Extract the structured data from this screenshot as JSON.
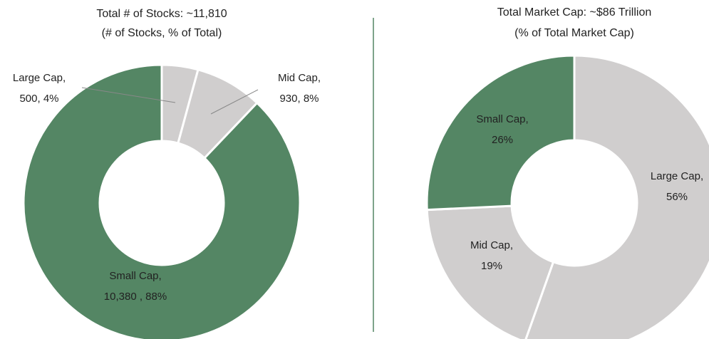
{
  "chart_data": [
    {
      "type": "donut",
      "title": "Total # of Stocks: ~11,810",
      "subtitle": "(# of Stocks, % of Total)",
      "categories": [
        "Large Cap,",
        "Mid Cap,",
        "Small Cap,"
      ],
      "values": [
        500,
        930,
        10380
      ],
      "value_labels": [
        "500, 4%",
        "930, 8%",
        "10,380 , 88%"
      ],
      "colors": [
        "#d0cece",
        "#d0cece",
        "#548664"
      ]
    },
    {
      "type": "donut",
      "title": "Total Market Cap: ~$86 Trillion",
      "subtitle": "(% of Total Market Cap)",
      "categories": [
        "Large Cap,",
        "Mid Cap,",
        "Small Cap,"
      ],
      "values": [
        56,
        19,
        26
      ],
      "value_labels": [
        "56%",
        "19%",
        "26%"
      ],
      "colors": [
        "#d0cece",
        "#d0cece",
        "#548664"
      ]
    }
  ]
}
